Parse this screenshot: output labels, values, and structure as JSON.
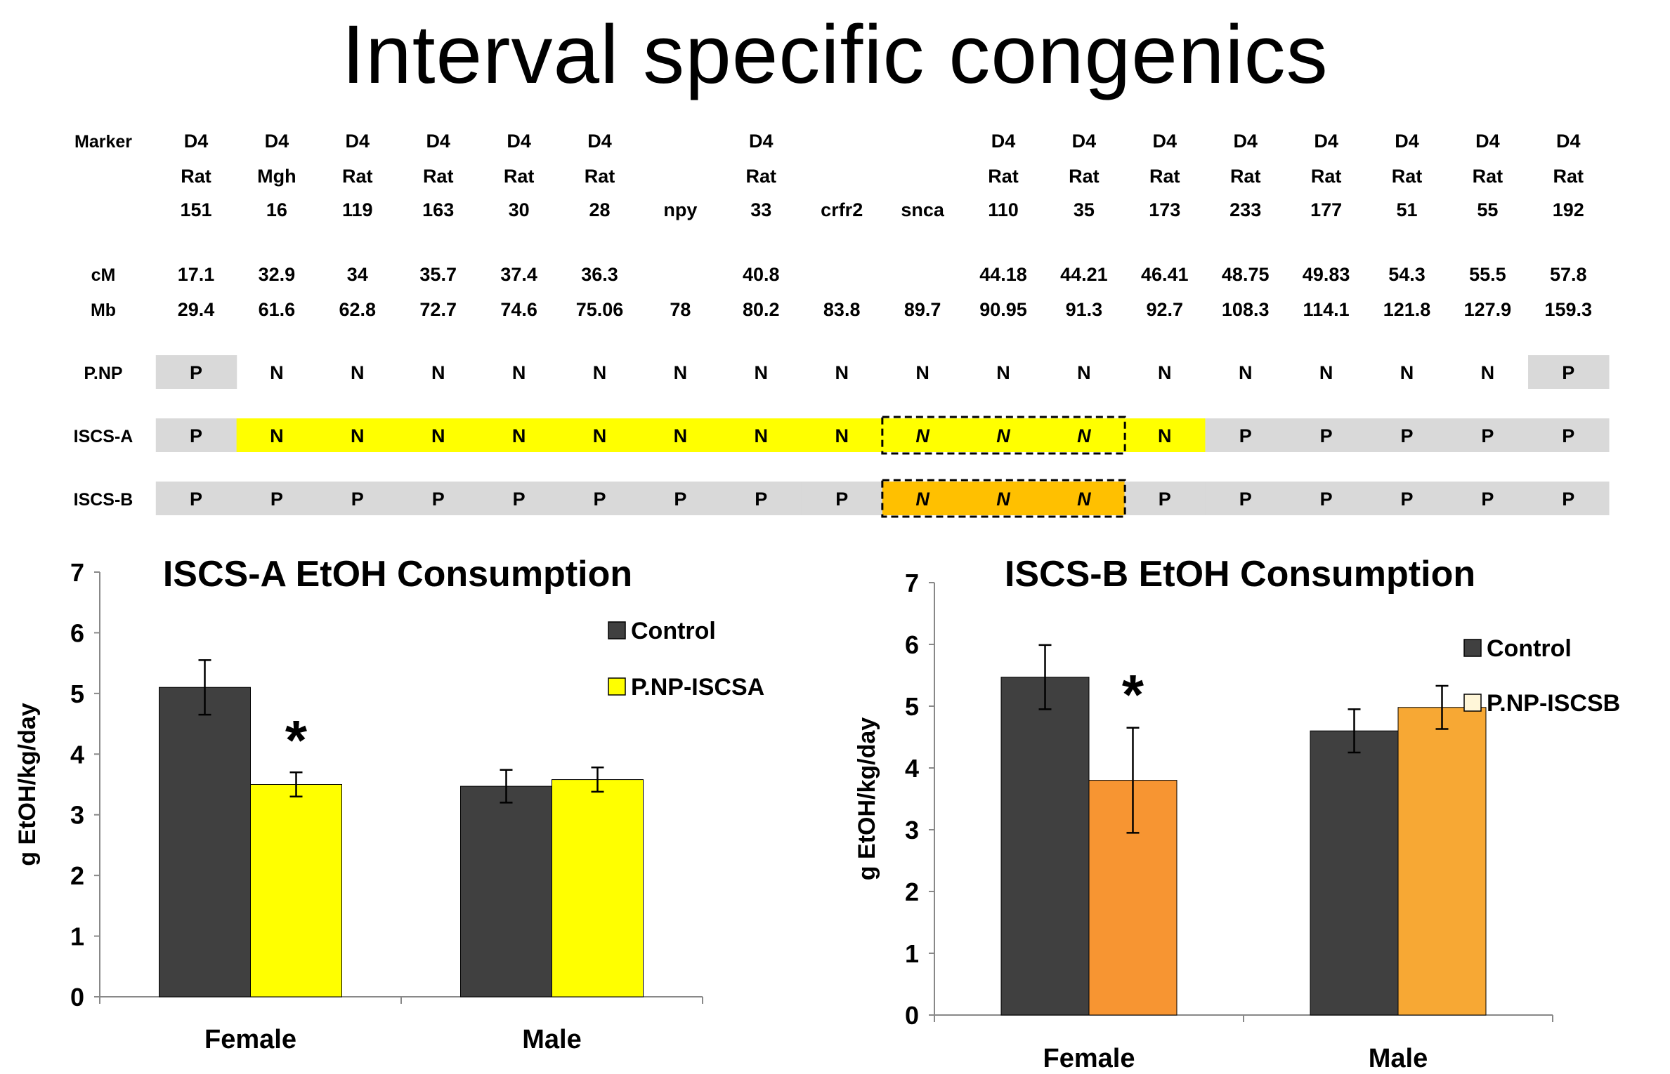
{
  "title": "Interval specific congenics",
  "table": {
    "row_labels": {
      "marker": "Marker",
      "cM": "cM",
      "Mb": "Mb",
      "pnp": "P.NP",
      "iscs_a": "ISCS-A",
      "iscs_b": "ISCS-B"
    },
    "markers": [
      {
        "l1": "D4",
        "l2": "Rat",
        "l3": "151",
        "cM": "17.1",
        "Mb": "29.4",
        "pnp": "P",
        "a": "P",
        "b": "P"
      },
      {
        "l1": "D4",
        "l2": "Mgh",
        "l3": "16",
        "cM": "32.9",
        "Mb": "61.6",
        "pnp": "N",
        "a": "N",
        "b": "P"
      },
      {
        "l1": "D4",
        "l2": "Rat",
        "l3": "119",
        "cM": "34",
        "Mb": "62.8",
        "pnp": "N",
        "a": "N",
        "b": "P"
      },
      {
        "l1": "D4",
        "l2": "Rat",
        "l3": "163",
        "cM": "35.7",
        "Mb": "72.7",
        "pnp": "N",
        "a": "N",
        "b": "P"
      },
      {
        "l1": "D4",
        "l2": "Rat",
        "l3": "30",
        "cM": "37.4",
        "Mb": "74.6",
        "pnp": "N",
        "a": "N",
        "b": "P"
      },
      {
        "l1": "D4",
        "l2": "Rat",
        "l3": "28",
        "cM": "36.3",
        "Mb": "75.06",
        "pnp": "N",
        "a": "N",
        "b": "P"
      },
      {
        "l1": "",
        "l2": "",
        "l3": "npy",
        "cM": "",
        "Mb": "78",
        "pnp": "N",
        "a": "N",
        "b": "P"
      },
      {
        "l1": "D4",
        "l2": "Rat",
        "l3": "33",
        "cM": "40.8",
        "Mb": "80.2",
        "pnp": "N",
        "a": "N",
        "b": "P"
      },
      {
        "l1": "",
        "l2": "",
        "l3": "crfr2",
        "cM": "",
        "Mb": "83.8",
        "pnp": "N",
        "a": "N",
        "b": "P"
      },
      {
        "l1": "",
        "l2": "",
        "l3": "snca",
        "cM": "",
        "Mb": "89.7",
        "pnp": "N",
        "a": "N",
        "b": "N"
      },
      {
        "l1": "D4",
        "l2": "Rat",
        "l3": "110",
        "cM": "44.18",
        "Mb": "90.95",
        "pnp": "N",
        "a": "N",
        "b": "N"
      },
      {
        "l1": "D4",
        "l2": "Rat",
        "l3": "35",
        "cM": "44.21",
        "Mb": "91.3",
        "pnp": "N",
        "a": "N",
        "b": "N"
      },
      {
        "l1": "D4",
        "l2": "Rat",
        "l3": "173",
        "cM": "46.41",
        "Mb": "92.7",
        "pnp": "N",
        "a": "N",
        "b": "P"
      },
      {
        "l1": "D4",
        "l2": "Rat",
        "l3": "233",
        "cM": "48.75",
        "Mb": "108.3",
        "pnp": "N",
        "a": "P",
        "b": "P"
      },
      {
        "l1": "D4",
        "l2": "Rat",
        "l3": "177",
        "cM": "49.83",
        "Mb": "114.1",
        "pnp": "N",
        "a": "P",
        "b": "P"
      },
      {
        "l1": "D4",
        "l2": "Rat",
        "l3": "51",
        "cM": "54.3",
        "Mb": "121.8",
        "pnp": "N",
        "a": "P",
        "b": "P"
      },
      {
        "l1": "D4",
        "l2": "Rat",
        "l3": "55",
        "cM": "55.5",
        "Mb": "127.9",
        "pnp": "N",
        "a": "P",
        "b": "P"
      },
      {
        "l1": "D4",
        "l2": "Rat",
        "l3": "192",
        "cM": "57.8",
        "Mb": "159.3",
        "pnp": "P",
        "a": "P",
        "b": "P"
      }
    ],
    "colors": {
      "p_gray": "#d9d9d9",
      "iscs_a_yellow": "#ffff00",
      "iscs_b_orange": "#ffc000"
    }
  },
  "chart_data": [
    {
      "type": "bar",
      "title": "ISCS-A EtOH Consumption",
      "ylabel": "g EtOH/kg/day",
      "xlabel": "",
      "ylim": [
        0,
        7
      ],
      "yticks": [
        "0",
        "1",
        "2",
        "3",
        "4",
        "5",
        "6",
        "7"
      ],
      "categories": [
        "Female",
        "Male"
      ],
      "series": [
        {
          "name": "Control",
          "values": [
            5.1,
            3.47
          ],
          "errors": [
            0.45,
            0.27
          ],
          "color": "#404040"
        },
        {
          "name": "P.NP-ISCSA",
          "values": [
            3.5,
            3.58
          ],
          "errors": [
            0.2,
            0.2
          ],
          "color": "#ffff00"
        }
      ],
      "annotations": [
        {
          "text": "*",
          "category": "Female"
        }
      ],
      "legend": "right"
    },
    {
      "type": "bar",
      "title": "ISCS-B EtOH Consumption",
      "ylabel": "g EtOH/kg/day",
      "xlabel": "",
      "ylim": [
        0,
        7
      ],
      "yticks": [
        "0",
        "1",
        "2",
        "3",
        "4",
        "5",
        "6",
        "7"
      ],
      "categories": [
        "Female",
        "Male"
      ],
      "series": [
        {
          "name": "Control",
          "values": [
            5.47,
            4.6
          ],
          "errors": [
            0.52,
            0.35
          ],
          "color": "#404040"
        },
        {
          "name": "P.NP-ISCSB",
          "values": [
            3.8,
            4.98
          ],
          "errors": [
            0.85,
            0.35
          ],
          "color": "#f7a030"
        }
      ],
      "bar_colors_series2": [
        "#f79532",
        "#f7a834"
      ],
      "annotations": [
        {
          "text": "*",
          "category": "Female"
        }
      ],
      "legend": "right"
    }
  ]
}
